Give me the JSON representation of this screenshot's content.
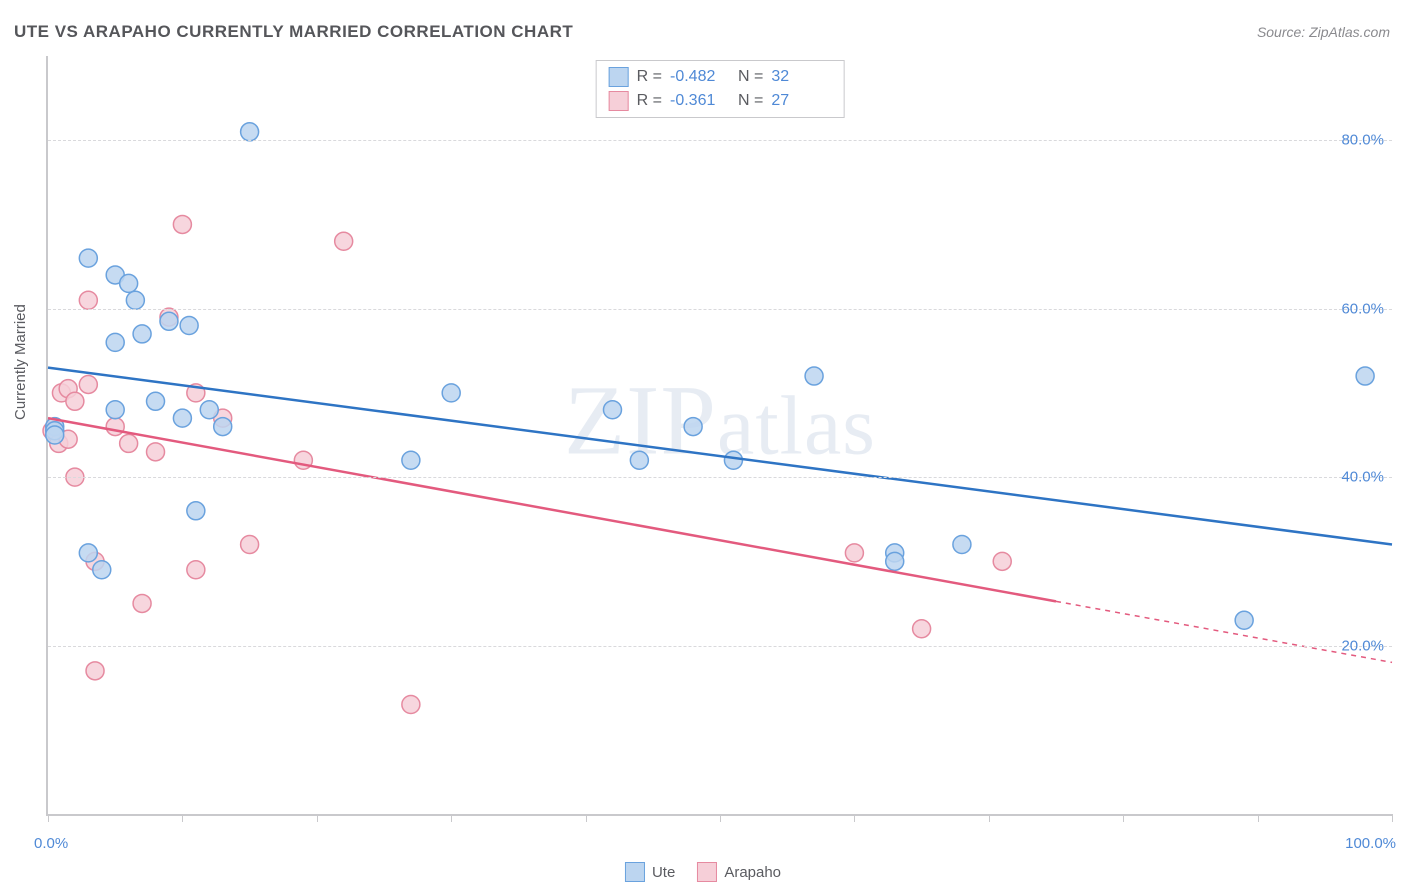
{
  "title": "UTE VS ARAPAHO CURRENTLY MARRIED CORRELATION CHART",
  "source_label": "Source: ZipAtlas.com",
  "y_axis_label": "Currently Married",
  "watermark": "ZIPatlas",
  "chart": {
    "type": "scatter",
    "background_color": "#ffffff",
    "grid_color": "#d9d9dc",
    "axis_color": "#c9c9cc",
    "tick_label_color": "#4f89d6",
    "text_color": "#5a5b60",
    "title_color": "#55565a",
    "xlim": [
      0,
      100
    ],
    "ylim": [
      0,
      90
    ],
    "x_ticks": [
      0,
      10,
      20,
      30,
      40,
      50,
      60,
      70,
      80,
      90,
      100
    ],
    "x_tick_labels": {
      "0": "0.0%",
      "100": "100.0%"
    },
    "y_ticks": [
      20,
      40,
      60,
      80
    ],
    "y_tick_labels": {
      "20": "20.0%",
      "40": "40.0%",
      "60": "60.0%",
      "80": "80.0%"
    },
    "marker_radius": 9,
    "marker_stroke_width": 1.5,
    "line_width": 2.5,
    "series": [
      {
        "name": "Ute",
        "fill_color": "#bcd5f0",
        "stroke_color": "#6aa2de",
        "line_color": "#2e74c4",
        "R": "-0.482",
        "N": "32",
        "regression": {
          "x1": 0,
          "y1": 53,
          "x2": 100,
          "y2": 32,
          "dashed_from_x": null
        },
        "points": [
          {
            "x": 0.5,
            "y": 46
          },
          {
            "x": 0.5,
            "y": 45.5
          },
          {
            "x": 0.5,
            "y": 45
          },
          {
            "x": 3,
            "y": 66
          },
          {
            "x": 3,
            "y": 31
          },
          {
            "x": 4,
            "y": 29
          },
          {
            "x": 5,
            "y": 64
          },
          {
            "x": 5,
            "y": 56
          },
          {
            "x": 5,
            "y": 48
          },
          {
            "x": 6,
            "y": 63
          },
          {
            "x": 6.5,
            "y": 61
          },
          {
            "x": 7,
            "y": 57
          },
          {
            "x": 8,
            "y": 49
          },
          {
            "x": 9,
            "y": 58.5
          },
          {
            "x": 10,
            "y": 47
          },
          {
            "x": 10.5,
            "y": 58
          },
          {
            "x": 11,
            "y": 36
          },
          {
            "x": 12,
            "y": 48
          },
          {
            "x": 13,
            "y": 46
          },
          {
            "x": 15,
            "y": 81
          },
          {
            "x": 27,
            "y": 42
          },
          {
            "x": 30,
            "y": 50
          },
          {
            "x": 42,
            "y": 48
          },
          {
            "x": 44,
            "y": 42
          },
          {
            "x": 51,
            "y": 42
          },
          {
            "x": 57,
            "y": 52
          },
          {
            "x": 63,
            "y": 31
          },
          {
            "x": 63,
            "y": 30
          },
          {
            "x": 68,
            "y": 32
          },
          {
            "x": 89,
            "y": 23
          },
          {
            "x": 98,
            "y": 52
          },
          {
            "x": 48,
            "y": 46
          }
        ]
      },
      {
        "name": "Arapaho",
        "fill_color": "#f6cfd8",
        "stroke_color": "#e68aa0",
        "line_color": "#e35a7e",
        "R": "-0.361",
        "N": "27",
        "regression": {
          "x1": 0,
          "y1": 47,
          "x2": 100,
          "y2": 18,
          "dashed_from_x": 75
        },
        "points": [
          {
            "x": 0.3,
            "y": 45.5
          },
          {
            "x": 0.8,
            "y": 44
          },
          {
            "x": 1,
            "y": 50
          },
          {
            "x": 1.5,
            "y": 50.5
          },
          {
            "x": 1.5,
            "y": 44.5
          },
          {
            "x": 2,
            "y": 49
          },
          {
            "x": 2,
            "y": 40
          },
          {
            "x": 3,
            "y": 61
          },
          {
            "x": 3,
            "y": 51
          },
          {
            "x": 3.5,
            "y": 30
          },
          {
            "x": 3.5,
            "y": 17
          },
          {
            "x": 5,
            "y": 46
          },
          {
            "x": 6,
            "y": 44
          },
          {
            "x": 7,
            "y": 25
          },
          {
            "x": 8,
            "y": 43
          },
          {
            "x": 9,
            "y": 59
          },
          {
            "x": 10,
            "y": 70
          },
          {
            "x": 11,
            "y": 50
          },
          {
            "x": 11,
            "y": 29
          },
          {
            "x": 15,
            "y": 32
          },
          {
            "x": 19,
            "y": 42
          },
          {
            "x": 22,
            "y": 68
          },
          {
            "x": 27,
            "y": 13
          },
          {
            "x": 60,
            "y": 31
          },
          {
            "x": 65,
            "y": 22
          },
          {
            "x": 71,
            "y": 30
          },
          {
            "x": 13,
            "y": 47
          }
        ]
      }
    ],
    "legend_top": {
      "R_label": "R =",
      "N_label": "N ="
    },
    "legend_bottom": [
      {
        "label": "Ute",
        "fill": "#bcd5f0",
        "stroke": "#6aa2de"
      },
      {
        "label": "Arapaho",
        "fill": "#f6cfd8",
        "stroke": "#e68aa0"
      }
    ]
  }
}
